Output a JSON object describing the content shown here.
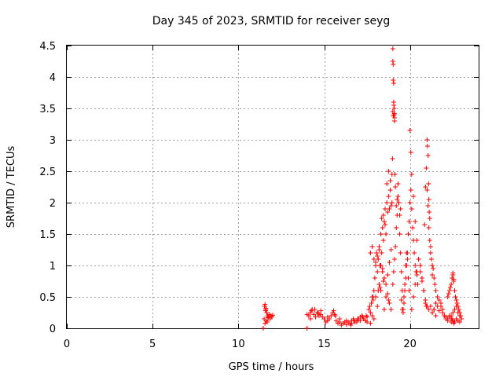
{
  "chart_data": {
    "type": "scatter",
    "title": "Day 345 of 2023, SRMTID for receiver seyg",
    "xlabel": "GPS time / hours",
    "ylabel": "SRMTID / TECUs",
    "xlim": [
      0,
      24
    ],
    "ylim": [
      0,
      4.5
    ],
    "xticks": [
      0,
      5,
      10,
      15,
      20
    ],
    "xtick_labels": [
      "0",
      "5",
      "10",
      "15",
      "20"
    ],
    "yticks": [
      0,
      0.5,
      1,
      1.5,
      2,
      2.5,
      3,
      3.5,
      4,
      4.5
    ],
    "ytick_labels": [
      "0",
      "0.5",
      "1",
      "1.5",
      "2",
      "2.5",
      "3",
      "3.5",
      "4",
      "4.5"
    ],
    "grid": true,
    "marker": "+",
    "color": "#ff0000",
    "series": [
      {
        "name": "SRMTID",
        "x": [
          11.45,
          11.5,
          11.55,
          11.6,
          11.65,
          11.7,
          11.75,
          11.8,
          11.85,
          11.9,
          11.95,
          12.0,
          11.52,
          11.58,
          11.62,
          11.68,
          11.72,
          11.55,
          11.6,
          14.0,
          14.1,
          14.2,
          14.3,
          14.4,
          14.5,
          14.6,
          14.7,
          14.8,
          14.9,
          15.0,
          15.1,
          15.2,
          15.3,
          15.4,
          15.5,
          15.6,
          15.7,
          15.8,
          15.9,
          16.0,
          16.1,
          16.2,
          16.3,
          16.4,
          16.5,
          16.6,
          16.7,
          16.8,
          16.9,
          17.0,
          17.1,
          17.2,
          17.3,
          17.4,
          17.5,
          14.25,
          14.45,
          14.65,
          15.55,
          15.65,
          16.55,
          16.75,
          16.95,
          17.25,
          17.45,
          14.0,
          14.2,
          14.8,
          15.2,
          15.9,
          16.3,
          16.6,
          16.9,
          17.1,
          17.3,
          17.5,
          17.7,
          17.6,
          17.65,
          17.7,
          17.75,
          17.8,
          17.85,
          17.9,
          17.95,
          18.0,
          18.05,
          18.1,
          18.15,
          18.2,
          18.25,
          18.3,
          18.35,
          18.4,
          18.45,
          18.5,
          18.55,
          18.6,
          18.65,
          18.7,
          18.75,
          18.8,
          18.85,
          18.9,
          18.95,
          17.8,
          17.9,
          18.0,
          18.1,
          18.2,
          18.3,
          18.4,
          18.5,
          18.6,
          18.7,
          18.8,
          18.9,
          18.65,
          18.75,
          18.85,
          18.95,
          18.55,
          18.45,
          18.35,
          18.25,
          17.7,
          17.8,
          17.9,
          18.0,
          18.1,
          18.2,
          18.3,
          18.4,
          18.5,
          18.6,
          18.7,
          18.8,
          18.9,
          17.85,
          18.15,
          18.45,
          18.75,
          19.0,
          19.0,
          19.02,
          19.02,
          19.05,
          19.05,
          19.08,
          19.08,
          19.1,
          19.1,
          19.0,
          19.03,
          19.06,
          19.09,
          18.98,
          19.12,
          19.15,
          19.2,
          19.25,
          19.3,
          19.35,
          19.4,
          19.45,
          19.0,
          19.05,
          19.1,
          19.15,
          19.2,
          19.25,
          19.3,
          19.35,
          19.4,
          19.45,
          19.5,
          19.55,
          19.6,
          19.65,
          19.7,
          19.75,
          19.8,
          19.85,
          19.9,
          19.95,
          19.5,
          19.55,
          19.6,
          19.65,
          19.7,
          19.75,
          19.8,
          19.85,
          19.9,
          19.95,
          20.0,
          20.05,
          20.1,
          20.15,
          20.2,
          20.25,
          20.3,
          20.35,
          20.4,
          20.45,
          20.0,
          20.05,
          20.1,
          20.2,
          20.3,
          20.4,
          20.5,
          20.6,
          20.7,
          20.8,
          20.9,
          20.95,
          20.1,
          20.2,
          20.3,
          20.4,
          20.5,
          20.6,
          20.7,
          20.8,
          20.9,
          21.0,
          21.0,
          21.02,
          21.05,
          21.08,
          21.1,
          21.12,
          21.15,
          21.0,
          21.05,
          21.1,
          21.15,
          21.2,
          21.25,
          21.3,
          21.35,
          21.4,
          21.45,
          21.5,
          20.95,
          20.9,
          20.85,
          21.2,
          21.3,
          21.1,
          21.2,
          21.3,
          21.4,
          21.5,
          21.6,
          21.7,
          21.8,
          21.9,
          22.0,
          22.1,
          22.2,
          22.3,
          22.4,
          22.5,
          22.6,
          22.7,
          22.8,
          22.9,
          21.3,
          21.4,
          21.5,
          21.6,
          21.7,
          21.8,
          21.9,
          22.0,
          22.1,
          22.2,
          22.3,
          22.4,
          22.5,
          22.6,
          22.7,
          22.8,
          22.9,
          23.0,
          22.2,
          22.25,
          22.3,
          22.35,
          22.4,
          22.45,
          22.5,
          22.55,
          22.6,
          22.65,
          22.7,
          22.75,
          22.8,
          22.85,
          22.9,
          22.95,
          22.4,
          22.45,
          22.5,
          22.55,
          22.6,
          22.5,
          22.55
        ],
        "y": [
          0.0,
          0.15,
          0.38,
          0.3,
          0.25,
          0.2,
          0.18,
          0.22,
          0.15,
          0.2,
          0.18,
          0.21,
          0.35,
          0.28,
          0.12,
          0.1,
          0.17,
          0.08,
          0.32,
          0.0,
          0.2,
          0.25,
          0.3,
          0.22,
          0.18,
          0.25,
          0.2,
          0.22,
          0.18,
          0.15,
          0.1,
          0.12,
          0.15,
          0.2,
          0.25,
          0.22,
          0.12,
          0.08,
          0.1,
          0.05,
          0.08,
          0.1,
          0.12,
          0.1,
          0.08,
          0.12,
          0.15,
          0.1,
          0.12,
          0.15,
          0.18,
          0.2,
          0.15,
          0.12,
          0.1,
          0.28,
          0.3,
          0.24,
          0.28,
          0.2,
          0.05,
          0.12,
          0.15,
          0.18,
          0.2,
          0.22,
          0.15,
          0.28,
          0.18,
          0.15,
          0.06,
          0.08,
          0.1,
          0.12,
          0.15,
          0.18,
          0.08,
          0.3,
          0.35,
          0.25,
          0.4,
          0.5,
          0.45,
          0.6,
          0.8,
          1.0,
          1.2,
          0.9,
          1.1,
          1.3,
          1.0,
          1.5,
          1.2,
          1.6,
          1.8,
          1.7,
          1.9,
          1.5,
          2.0,
          1.85,
          2.1,
          1.9,
          2.2,
          1.95,
          2.0,
          0.2,
          0.15,
          0.5,
          0.35,
          0.7,
          0.6,
          0.9,
          0.3,
          0.5,
          0.85,
          1.05,
          1.25,
          2.3,
          2.5,
          2.35,
          2.45,
          1.65,
          1.4,
          1.75,
          0.65,
          1.2,
          1.3,
          1.1,
          1.05,
          1.15,
          1.25,
          1.0,
          0.95,
          0.8,
          0.7,
          0.55,
          0.4,
          0.3,
          0.5,
          0.6,
          0.75,
          0.45,
          4.45,
          4.25,
          4.2,
          3.95,
          3.9,
          3.6,
          3.5,
          3.4,
          3.35,
          3.3,
          3.45,
          3.38,
          3.55,
          3.42,
          2.7,
          2.45,
          2.25,
          1.95,
          2.05,
          2.1,
          2.0,
          1.8,
          1.9,
          0.7,
          0.9,
          1.1,
          1.3,
          1.6,
          1.8,
          2.3,
          2.0,
          1.5,
          1.2,
          0.9,
          0.6,
          0.3,
          0.5,
          0.7,
          1.0,
          1.2,
          1.1,
          0.8,
          0.6,
          0.45,
          0.3,
          0.25,
          0.4,
          0.6,
          0.8,
          1.0,
          1.2,
          1.5,
          1.7,
          2.0,
          2.2,
          1.9,
          1.6,
          1.4,
          1.2,
          1.0,
          0.9,
          0.85,
          0.7,
          3.15,
          2.8,
          2.45,
          2.1,
          1.7,
          1.4,
          1.1,
          0.9,
          0.75,
          0.6,
          0.45,
          0.35,
          0.3,
          0.5,
          0.7,
          0.9,
          1.1,
          1.0,
          0.8,
          0.6,
          0.4,
          0.35,
          3.0,
          2.9,
          2.75,
          2.3,
          2.05,
          1.85,
          1.75,
          2.2,
          1.95,
          1.6,
          1.4,
          1.3,
          1.1,
          1.0,
          0.95,
          0.8,
          0.7,
          0.6,
          2.55,
          2.25,
          1.65,
          1.2,
          0.85,
          0.3,
          0.35,
          0.25,
          0.3,
          0.4,
          0.5,
          0.45,
          0.35,
          0.25,
          0.2,
          0.18,
          0.15,
          0.2,
          0.15,
          0.12,
          0.1,
          0.15,
          0.12,
          0.1,
          0.25,
          0.3,
          0.2,
          0.35,
          0.28,
          0.4,
          0.3,
          0.2,
          0.15,
          0.12,
          0.18,
          0.2,
          0.25,
          0.3,
          0.35,
          0.25,
          0.2,
          0.15,
          0.5,
          0.55,
          0.6,
          0.65,
          0.7,
          0.8,
          0.85,
          0.75,
          0.6,
          0.5,
          0.45,
          0.4,
          0.35,
          0.3,
          0.25,
          0.2,
          0.1,
          0.15,
          0.12,
          0.08,
          0.1,
          0.88,
          0.78
        ]
      }
    ]
  }
}
